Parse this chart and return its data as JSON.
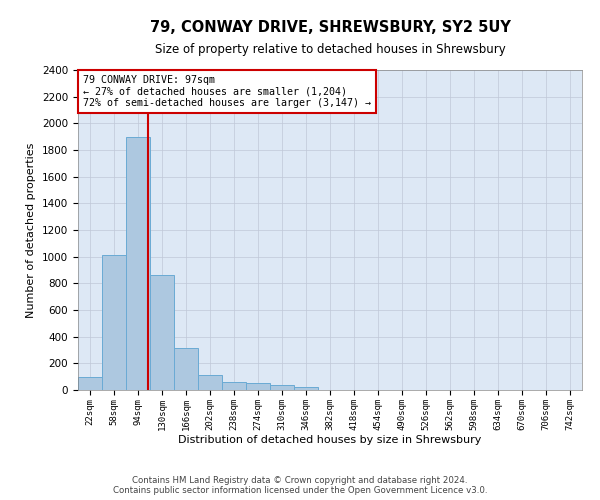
{
  "title": "79, CONWAY DRIVE, SHREWSBURY, SY2 5UY",
  "subtitle": "Size of property relative to detached houses in Shrewsbury",
  "xlabel": "Distribution of detached houses by size in Shrewsbury",
  "ylabel": "Number of detached properties",
  "footer_line1": "Contains HM Land Registry data © Crown copyright and database right 2024.",
  "footer_line2": "Contains public sector information licensed under the Open Government Licence v3.0.",
  "bin_labels": [
    "22sqm",
    "58sqm",
    "94sqm",
    "130sqm",
    "166sqm",
    "202sqm",
    "238sqm",
    "274sqm",
    "310sqm",
    "346sqm",
    "382sqm",
    "418sqm",
    "454sqm",
    "490sqm",
    "526sqm",
    "562sqm",
    "598sqm",
    "634sqm",
    "670sqm",
    "706sqm",
    "742sqm"
  ],
  "bar_values": [
    100,
    1010,
    1900,
    860,
    315,
    115,
    57,
    50,
    35,
    20,
    0,
    0,
    0,
    0,
    0,
    0,
    0,
    0,
    0,
    0,
    0
  ],
  "property_label": "79 CONWAY DRIVE: 97sqm",
  "annotation_line1": "← 27% of detached houses are smaller (1,204)",
  "annotation_line2": "72% of semi-detached houses are larger (3,147) →",
  "vline_x": 2.42,
  "bar_color": "#adc8e0",
  "bar_edge_color": "#6aaad4",
  "vline_color": "#cc0000",
  "annotation_box_color": "#cc0000",
  "ax_background_color": "#dde8f5",
  "background_color": "#ffffff",
  "grid_color": "#c0c8d8",
  "ylim": [
    0,
    2400
  ],
  "yticks": [
    0,
    200,
    400,
    600,
    800,
    1000,
    1200,
    1400,
    1600,
    1800,
    2000,
    2200,
    2400
  ]
}
